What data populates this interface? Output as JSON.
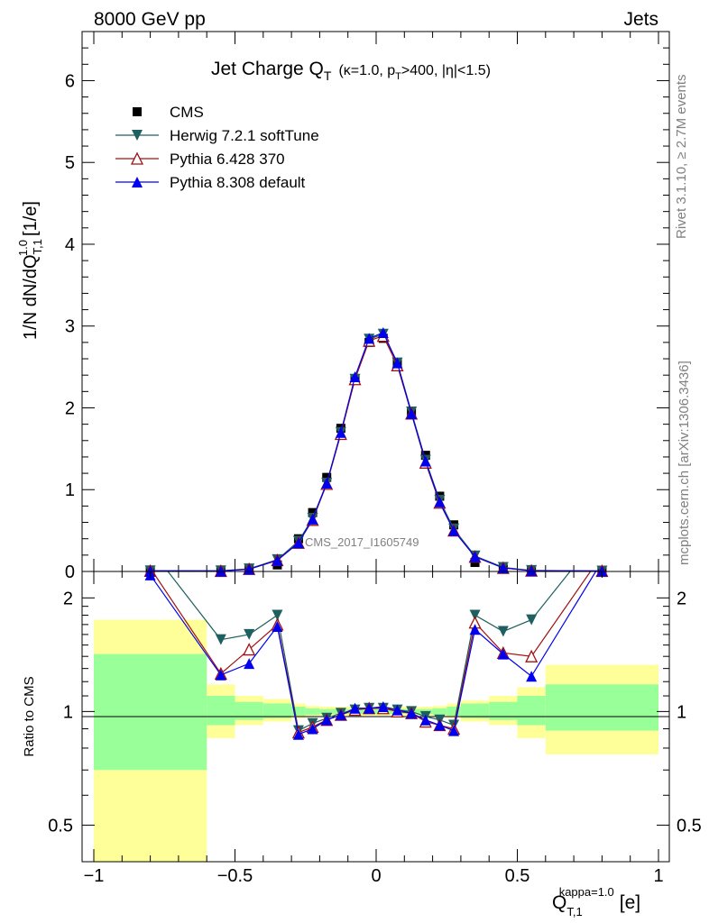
{
  "header": {
    "left": "8000 GeV pp",
    "right": "Jets"
  },
  "title": {
    "main": "Jet Charge Q",
    "main_sub": "T",
    "cond_a": "(κ=1.0, p",
    "cond_sub": "T",
    "cond_b": ">400, |η|<1.5)"
  },
  "side_labels": {
    "rivet": "Rivet 3.1.10, ≥ 2.7M events",
    "mcplots": "mcplots.cern.ch [arXiv:1306.3436]"
  },
  "watermark": "CMS_2017_I1605749",
  "axes": {
    "ylabel_main": "1/N dN/dQ",
    "ylabel_main_sup": "1.0",
    "ylabel_main_sub": "T,1",
    "ylabel_main_unit": "[1/e]",
    "ylabel_ratio": "Ratio to CMS",
    "xlabel": "Q",
    "xlabel_sub": "T,1",
    "xlabel_sup": "kappa=1.0",
    "xlabel_unit": "[e]",
    "main_yticks": [
      "0",
      "1",
      "2",
      "3",
      "4",
      "5",
      "6"
    ],
    "ratio_yticks": [
      "0.5",
      "1",
      "2"
    ],
    "ratio_yticks_right": [
      "0.5",
      "1",
      "2"
    ],
    "xticks": [
      "−1",
      "−0.5",
      "0",
      "0.5",
      "1"
    ]
  },
  "legend": [
    {
      "name": "CMS",
      "color": "#000000",
      "marker": "square"
    },
    {
      "name": "Herwig 7.2.1 softTune",
      "color": "#1f5f5f",
      "marker": "triangle-down"
    },
    {
      "name": "Pythia 6.428 370",
      "color": "#a01010",
      "marker": "triangle-up-open"
    },
    {
      "name": "Pythia 8.308 default",
      "color": "#0000ee",
      "marker": "triangle-up"
    }
  ],
  "chart_data": {
    "type": "line",
    "x": [
      -0.8,
      -0.55,
      -0.45,
      -0.35,
      -0.275,
      -0.225,
      -0.175,
      -0.125,
      -0.075,
      -0.025,
      0.025,
      0.075,
      0.125,
      0.175,
      0.225,
      0.275,
      0.35,
      0.45,
      0.55,
      0.8
    ],
    "xlim": [
      -1.05,
      1.05
    ],
    "main": {
      "ylim": [
        0,
        6.6
      ],
      "series": [
        {
          "name": "CMS",
          "values": [
            0.003,
            0.005,
            0.02,
            0.08,
            0.4,
            0.72,
            1.15,
            1.75,
            2.35,
            2.8,
            2.85,
            2.55,
            1.95,
            1.42,
            0.92,
            0.57,
            0.11,
            0.03,
            0.007,
            0.003
          ]
        },
        {
          "name": "Herwig 7.2.1 softTune",
          "values": [
            0.008,
            0.008,
            0.032,
            0.145,
            0.37,
            0.65,
            1.08,
            1.7,
            2.35,
            2.84,
            2.9,
            2.55,
            1.95,
            1.36,
            0.87,
            0.52,
            0.19,
            0.05,
            0.012,
            0.006
          ]
        },
        {
          "name": "Pythia 6.428 370",
          "values": [
            0.007,
            0.0063,
            0.03,
            0.138,
            0.35,
            0.63,
            1.07,
            1.68,
            2.35,
            2.82,
            2.88,
            2.52,
            1.93,
            1.33,
            0.84,
            0.5,
            0.18,
            0.043,
            0.01,
            0.006
          ]
        },
        {
          "name": "Pythia 8.308 default",
          "values": [
            0.007,
            0.006,
            0.027,
            0.135,
            0.35,
            0.64,
            1.08,
            1.7,
            2.38,
            2.85,
            2.92,
            2.55,
            1.93,
            1.35,
            0.85,
            0.5,
            0.18,
            0.043,
            0.009,
            0.006
          ]
        }
      ]
    },
    "ratio": {
      "ylim": [
        0.4,
        2.35
      ],
      "log_y": true,
      "bands": [
        {
          "x0": -1.0,
          "x1": -0.6,
          "inner": [
            0.7,
            1.42
          ],
          "outer": [
            0.35,
            1.75
          ]
        },
        {
          "x0": -0.6,
          "x1": -0.5,
          "inner": [
            0.92,
            1.1
          ],
          "outer": [
            0.85,
            1.18
          ]
        },
        {
          "x0": -0.5,
          "x1": -0.4,
          "inner": [
            0.95,
            1.06
          ],
          "outer": [
            0.92,
            1.1
          ]
        },
        {
          "x0": -0.4,
          "x1": -0.3,
          "inner": [
            0.96,
            1.05
          ],
          "outer": [
            0.94,
            1.08
          ]
        },
        {
          "x0": -0.3,
          "x1": -0.25,
          "inner": [
            0.975,
            1.03
          ],
          "outer": [
            0.96,
            1.05
          ]
        },
        {
          "x0": -0.25,
          "x1": -0.2,
          "inner": [
            0.98,
            1.02
          ],
          "outer": [
            0.97,
            1.035
          ]
        },
        {
          "x0": -0.2,
          "x1": 0.2,
          "inner": [
            0.985,
            1.015
          ],
          "outer": [
            0.975,
            1.03
          ]
        },
        {
          "x0": 0.2,
          "x1": 0.25,
          "inner": [
            0.98,
            1.02
          ],
          "outer": [
            0.97,
            1.035
          ]
        },
        {
          "x0": 0.25,
          "x1": 0.3,
          "inner": [
            0.975,
            1.03
          ],
          "outer": [
            0.96,
            1.05
          ]
        },
        {
          "x0": 0.3,
          "x1": 0.4,
          "inner": [
            0.96,
            1.05
          ],
          "outer": [
            0.94,
            1.07
          ]
        },
        {
          "x0": 0.4,
          "x1": 0.5,
          "inner": [
            0.95,
            1.06
          ],
          "outer": [
            0.92,
            1.1
          ]
        },
        {
          "x0": 0.5,
          "x1": 0.6,
          "inner": [
            0.92,
            1.1
          ],
          "outer": [
            0.85,
            1.16
          ]
        },
        {
          "x0": 0.6,
          "x1": 1.0,
          "inner": [
            0.89,
            1.18
          ],
          "outer": [
            0.77,
            1.33
          ]
        }
      ],
      "band_colors": {
        "inner": "#99ff99",
        "outer": "#ffff99"
      },
      "series": [
        {
          "name": "Herwig 7.2.1 softTune",
          "values": [
            2.7,
            1.55,
            1.6,
            1.8,
            0.89,
            0.93,
            0.96,
            0.99,
            1.01,
            1.02,
            1.02,
            1.01,
            1.0,
            0.97,
            0.95,
            0.92,
            1.8,
            1.63,
            1.75,
            3.0
          ]
        },
        {
          "name": "Pythia 6.428 370",
          "values": [
            2.4,
            1.26,
            1.46,
            1.7,
            0.88,
            0.91,
            0.95,
            0.98,
            1.01,
            1.02,
            1.02,
            1.0,
            0.99,
            0.94,
            0.92,
            0.9,
            1.72,
            1.43,
            1.4,
            2.6
          ]
        },
        {
          "name": "Pythia 8.308 default",
          "values": [
            2.3,
            1.25,
            1.34,
            1.68,
            0.87,
            0.9,
            0.95,
            0.98,
            1.02,
            1.02,
            1.03,
            1.01,
            0.99,
            0.95,
            0.92,
            0.89,
            1.65,
            1.42,
            1.24,
            2.5
          ]
        }
      ]
    }
  }
}
